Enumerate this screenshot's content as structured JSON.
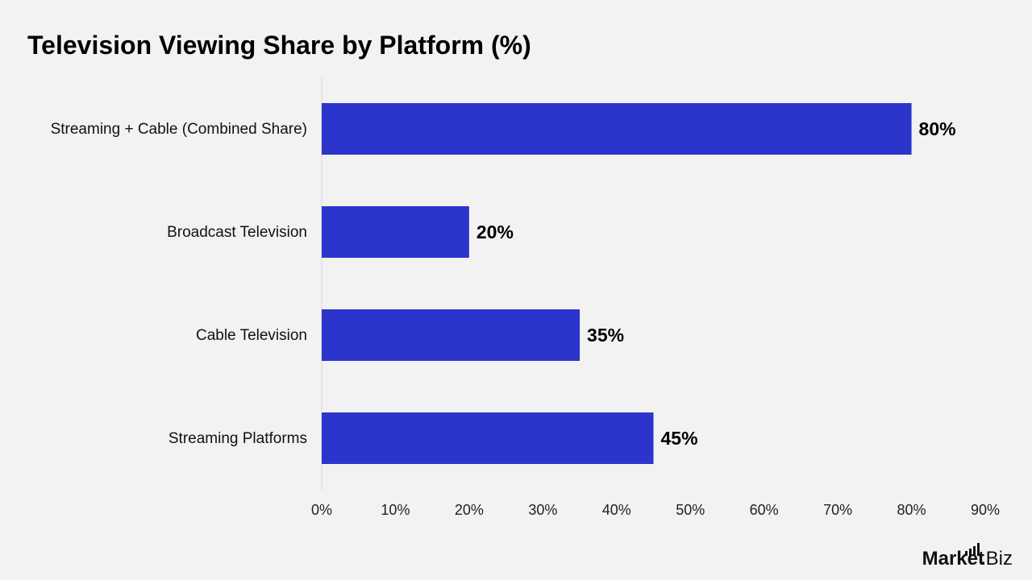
{
  "chart_data": {
    "type": "bar",
    "orientation": "horizontal",
    "title": "Television Viewing Share by Platform (%)",
    "categories": [
      "Streaming + Cable (Combined Share)",
      "Broadcast Television",
      "Cable Television",
      "Streaming Platforms"
    ],
    "values": [
      80,
      20,
      35,
      45
    ],
    "value_labels": [
      "80%",
      "20%",
      "35%",
      "45%"
    ],
    "xlim": [
      0,
      90
    ],
    "x_ticks": [
      0,
      10,
      20,
      30,
      40,
      50,
      60,
      70,
      80,
      90
    ],
    "x_tick_labels": [
      "0%",
      "10%",
      "20%",
      "30%",
      "40%",
      "50%",
      "60%",
      "70%",
      "80%",
      "90%"
    ],
    "xlabel": "",
    "ylabel": "",
    "grid": false,
    "legend": "none",
    "bar_color": "#2c35cb"
  },
  "branding": {
    "logo_main": "Market",
    "logo_dot": ".",
    "logo_end": "Biz"
  }
}
